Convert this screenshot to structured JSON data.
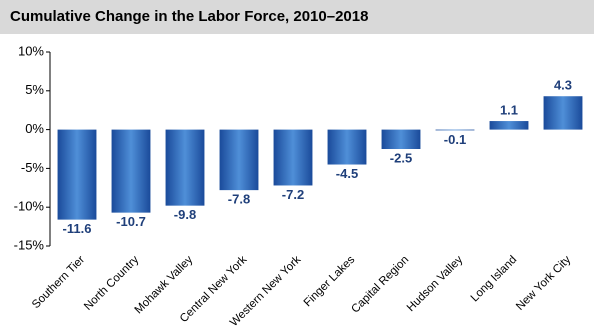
{
  "chart_data": {
    "type": "bar",
    "title": "Cumulative Change in the Labor Force, 2010–2018",
    "categories": [
      "Southern Tier",
      "North Country",
      "Mohawk Valley",
      "Central New York",
      "Western New York",
      "Finger Lakes",
      "Capital Region",
      "Hudson Valley",
      "Long Island",
      "New York City"
    ],
    "values": [
      -11.6,
      -10.7,
      -9.8,
      -7.8,
      -7.2,
      -4.5,
      -2.5,
      -0.1,
      1.1,
      4.3
    ],
    "color": "#1a4a9a",
    "ylim": [
      -15,
      10
    ],
    "yticks": [
      {
        "value": -15,
        "label": "-15%"
      },
      {
        "value": -10,
        "label": "-10%"
      },
      {
        "value": -5,
        "label": "-5%"
      },
      {
        "value": 0,
        "label": "0%"
      },
      {
        "value": 5,
        "label": "5%"
      },
      {
        "value": 10,
        "label": "10%"
      }
    ],
    "grid": false
  }
}
